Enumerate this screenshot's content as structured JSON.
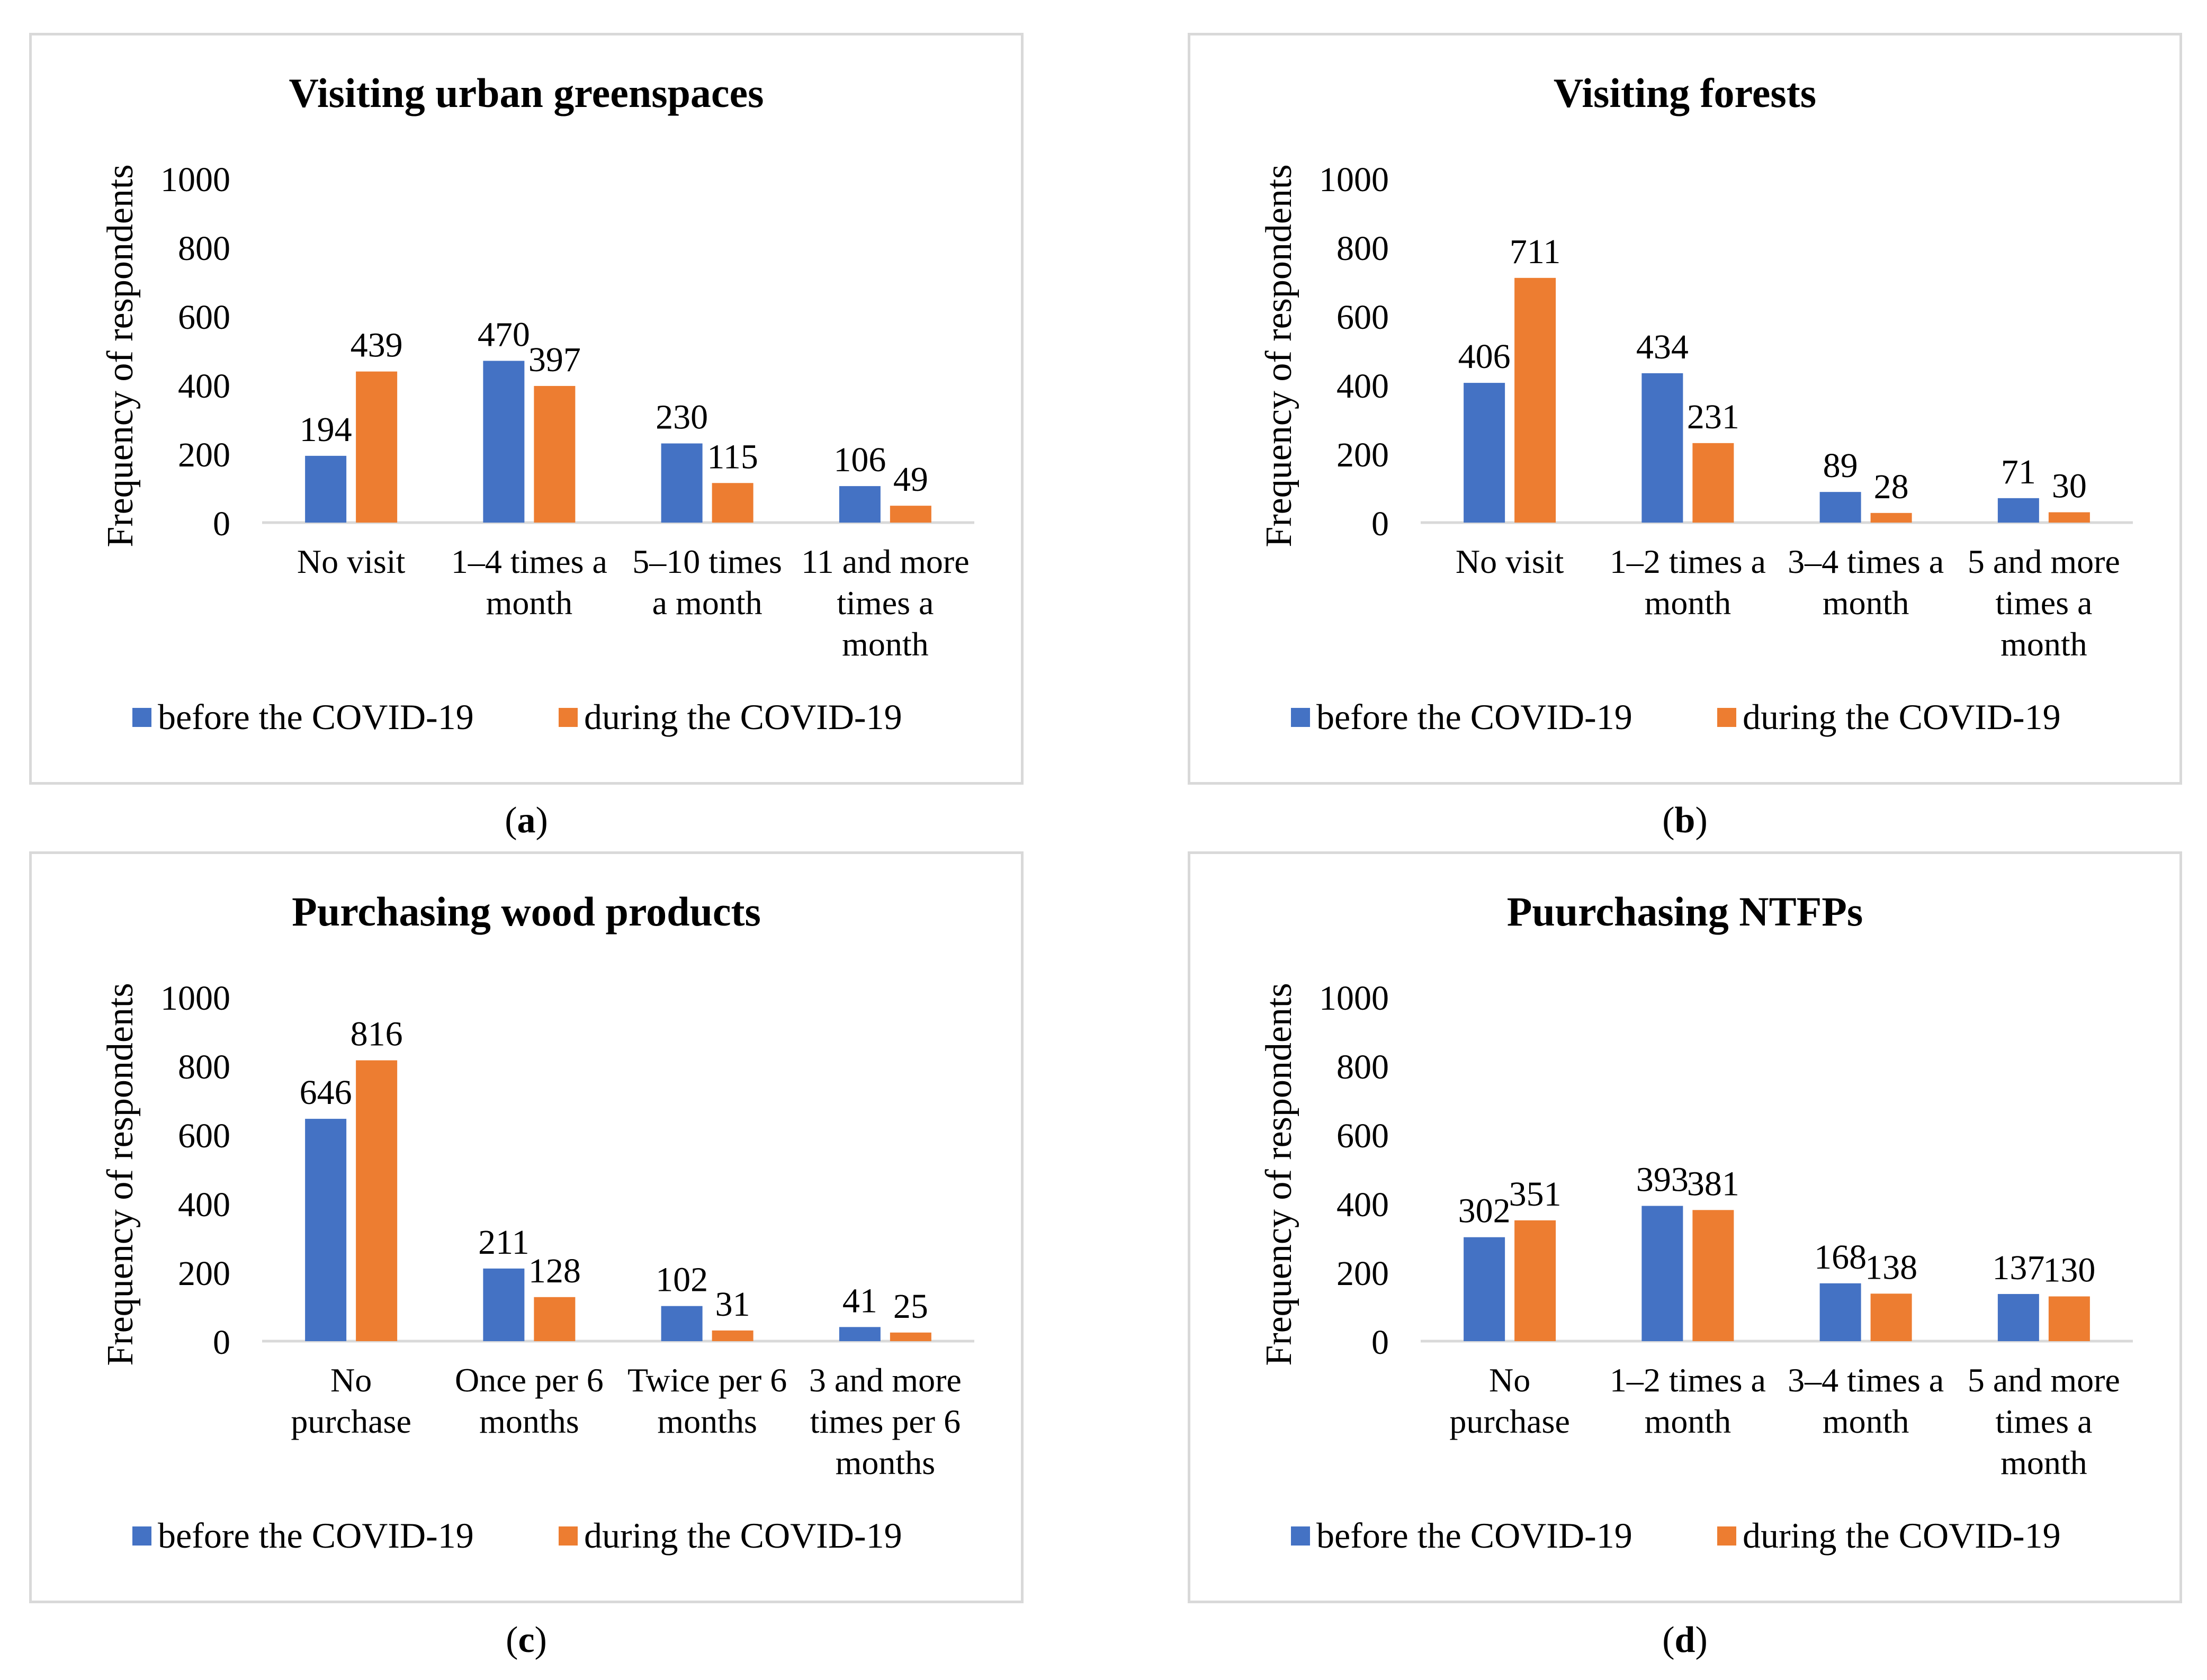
{
  "captions": [
    "a",
    "b",
    "c",
    "d"
  ],
  "colors": {
    "before": "#4472c4",
    "during": "#ed7d31",
    "axis": "#d9d9d9"
  },
  "chart_data": [
    {
      "type": "bar",
      "title": "Visiting urban greenspaces",
      "xlabel": "",
      "ylabel": "Frequency of respondents",
      "ylim": [
        0,
        1000
      ],
      "yticks": [
        "1000",
        "800",
        "600",
        "400",
        "200",
        "0"
      ],
      "categories": [
        [
          "No visit"
        ],
        [
          "1–4 times a",
          "month"
        ],
        [
          "5–10 times",
          "a month"
        ],
        [
          "11 and more",
          "times a",
          "month"
        ]
      ],
      "series": [
        {
          "name": "before the COVID-19",
          "values": [
            194,
            470,
            230,
            106
          ]
        },
        {
          "name": "during the COVID-19",
          "values": [
            439,
            397,
            115,
            49
          ]
        }
      ],
      "legend": "bottom"
    },
    {
      "type": "bar",
      "title": "Visiting forests",
      "xlabel": "",
      "ylabel": "Frequency of respondents",
      "ylim": [
        0,
        1000
      ],
      "yticks": [
        "1000",
        "800",
        "600",
        "400",
        "200",
        "0"
      ],
      "categories": [
        [
          "No visit"
        ],
        [
          "1–2 times a",
          "month"
        ],
        [
          "3–4 times a",
          "month"
        ],
        [
          "5 and more",
          "times a",
          "month"
        ]
      ],
      "series": [
        {
          "name": "before the COVID-19",
          "values": [
            406,
            434,
            89,
            71
          ]
        },
        {
          "name": "during the COVID-19",
          "values": [
            711,
            231,
            28,
            30
          ]
        }
      ],
      "legend": "bottom"
    },
    {
      "type": "bar",
      "title": "Purchasing wood products",
      "xlabel": "",
      "ylabel": "Frequency of respondents",
      "ylim": [
        0,
        1000
      ],
      "yticks": [
        "1000",
        "800",
        "600",
        "400",
        "200",
        "0"
      ],
      "categories": [
        [
          "No",
          "purchase"
        ],
        [
          "Once per 6",
          "months"
        ],
        [
          "Twice per 6",
          "months"
        ],
        [
          "3 and more",
          "times per 6",
          "months"
        ]
      ],
      "series": [
        {
          "name": "before the COVID-19",
          "values": [
            646,
            211,
            102,
            41
          ]
        },
        {
          "name": "during the COVID-19",
          "values": [
            816,
            128,
            31,
            25
          ]
        }
      ],
      "legend": "bottom"
    },
    {
      "type": "bar",
      "title": "Puurchasing NTFPs",
      "xlabel": "",
      "ylabel": "Frequency of respondents",
      "ylim": [
        0,
        1000
      ],
      "yticks": [
        "1000",
        "800",
        "600",
        "400",
        "200",
        "0"
      ],
      "categories": [
        [
          "No",
          "purchase"
        ],
        [
          "1–2 times a",
          "month"
        ],
        [
          "3–4 times a",
          "month"
        ],
        [
          "5 and more",
          "times a",
          "month"
        ]
      ],
      "series": [
        {
          "name": "before the COVID-19",
          "values": [
            302,
            393,
            168,
            137
          ]
        },
        {
          "name": "during the COVID-19",
          "values": [
            351,
            381,
            138,
            130
          ]
        }
      ],
      "legend": "bottom"
    }
  ]
}
